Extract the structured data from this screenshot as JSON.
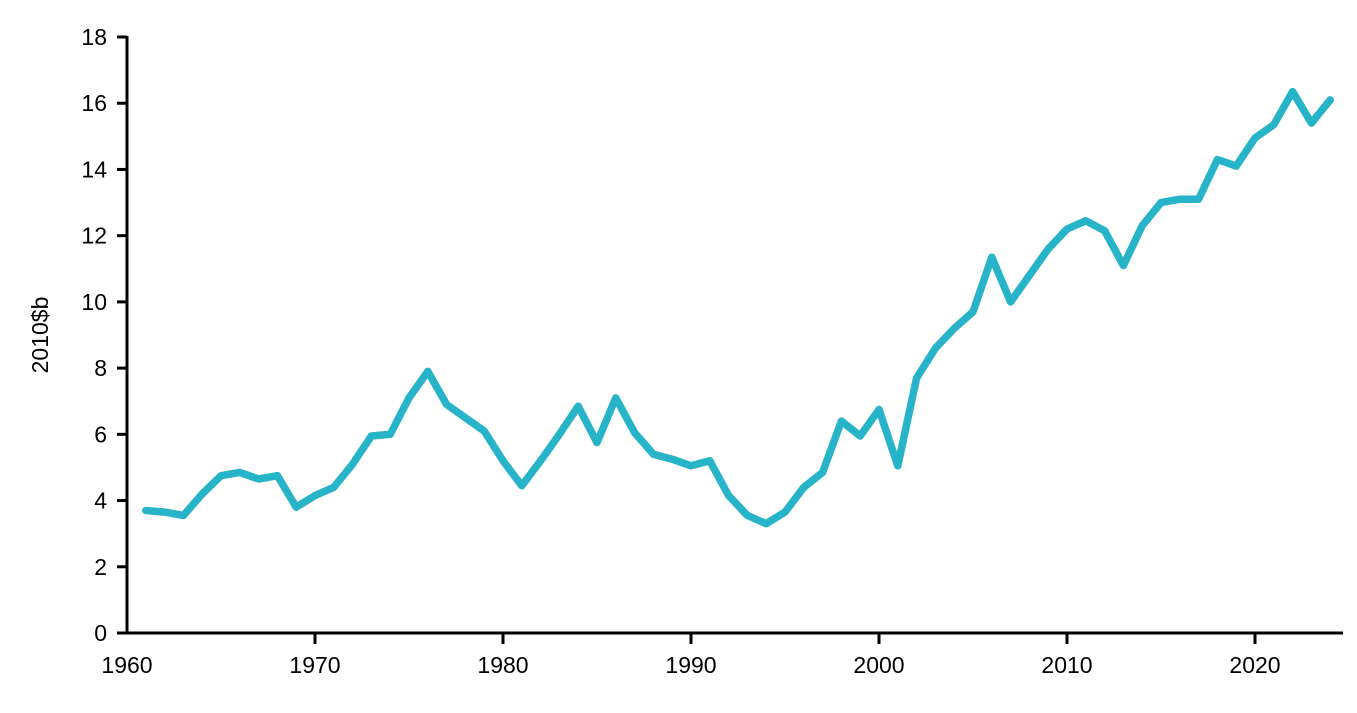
{
  "chart_data": {
    "type": "line",
    "title": "",
    "xlabel": "",
    "ylabel": "2010$b",
    "grid": false,
    "legend_position": "none",
    "xlim": [
      1960,
      2024.6
    ],
    "ylim": [
      0,
      18
    ],
    "x_ticks": [
      1960,
      1970,
      1980,
      1990,
      2000,
      2010,
      2020
    ],
    "y_ticks": [
      0,
      2,
      4,
      6,
      8,
      10,
      12,
      14,
      16,
      18
    ],
    "line_color": "#28b4c8",
    "axis_color": "#000000",
    "x": [
      1961,
      1962,
      1963,
      1964,
      1965,
      1966,
      1967,
      1968,
      1969,
      1970,
      1971,
      1972,
      1973,
      1974,
      1975,
      1976,
      1977,
      1978,
      1979,
      1980,
      1981,
      1982,
      1983,
      1984,
      1985,
      1986,
      1987,
      1988,
      1989,
      1990,
      1991,
      1992,
      1993,
      1994,
      1995,
      1996,
      1997,
      1998,
      1999,
      2000,
      2001,
      2002,
      2003,
      2004,
      2005,
      2006,
      2007,
      2008,
      2009,
      2010,
      2011,
      2012,
      2013,
      2014,
      2015,
      2016,
      2017,
      2018,
      2019,
      2020,
      2021,
      2022,
      2023,
      2024
    ],
    "values": [
      3.7,
      3.65,
      3.55,
      4.2,
      4.75,
      4.85,
      4.65,
      4.75,
      3.8,
      4.15,
      4.4,
      5.1,
      5.95,
      6.0,
      7.1,
      7.9,
      6.9,
      6.5,
      6.1,
      5.2,
      4.45,
      5.2,
      6.0,
      6.85,
      5.75,
      7.1,
      6.05,
      5.4,
      5.25,
      5.05,
      5.2,
      4.15,
      3.55,
      3.3,
      3.65,
      4.4,
      4.85,
      6.4,
      5.95,
      6.75,
      5.05,
      7.7,
      8.6,
      9.2,
      9.7,
      11.35,
      10.0,
      10.8,
      11.6,
      12.2,
      12.45,
      12.15,
      11.1,
      12.3,
      13.0,
      13.1,
      13.1,
      14.3,
      14.1,
      14.95,
      15.35,
      16.35,
      15.4,
      16.1
    ]
  }
}
